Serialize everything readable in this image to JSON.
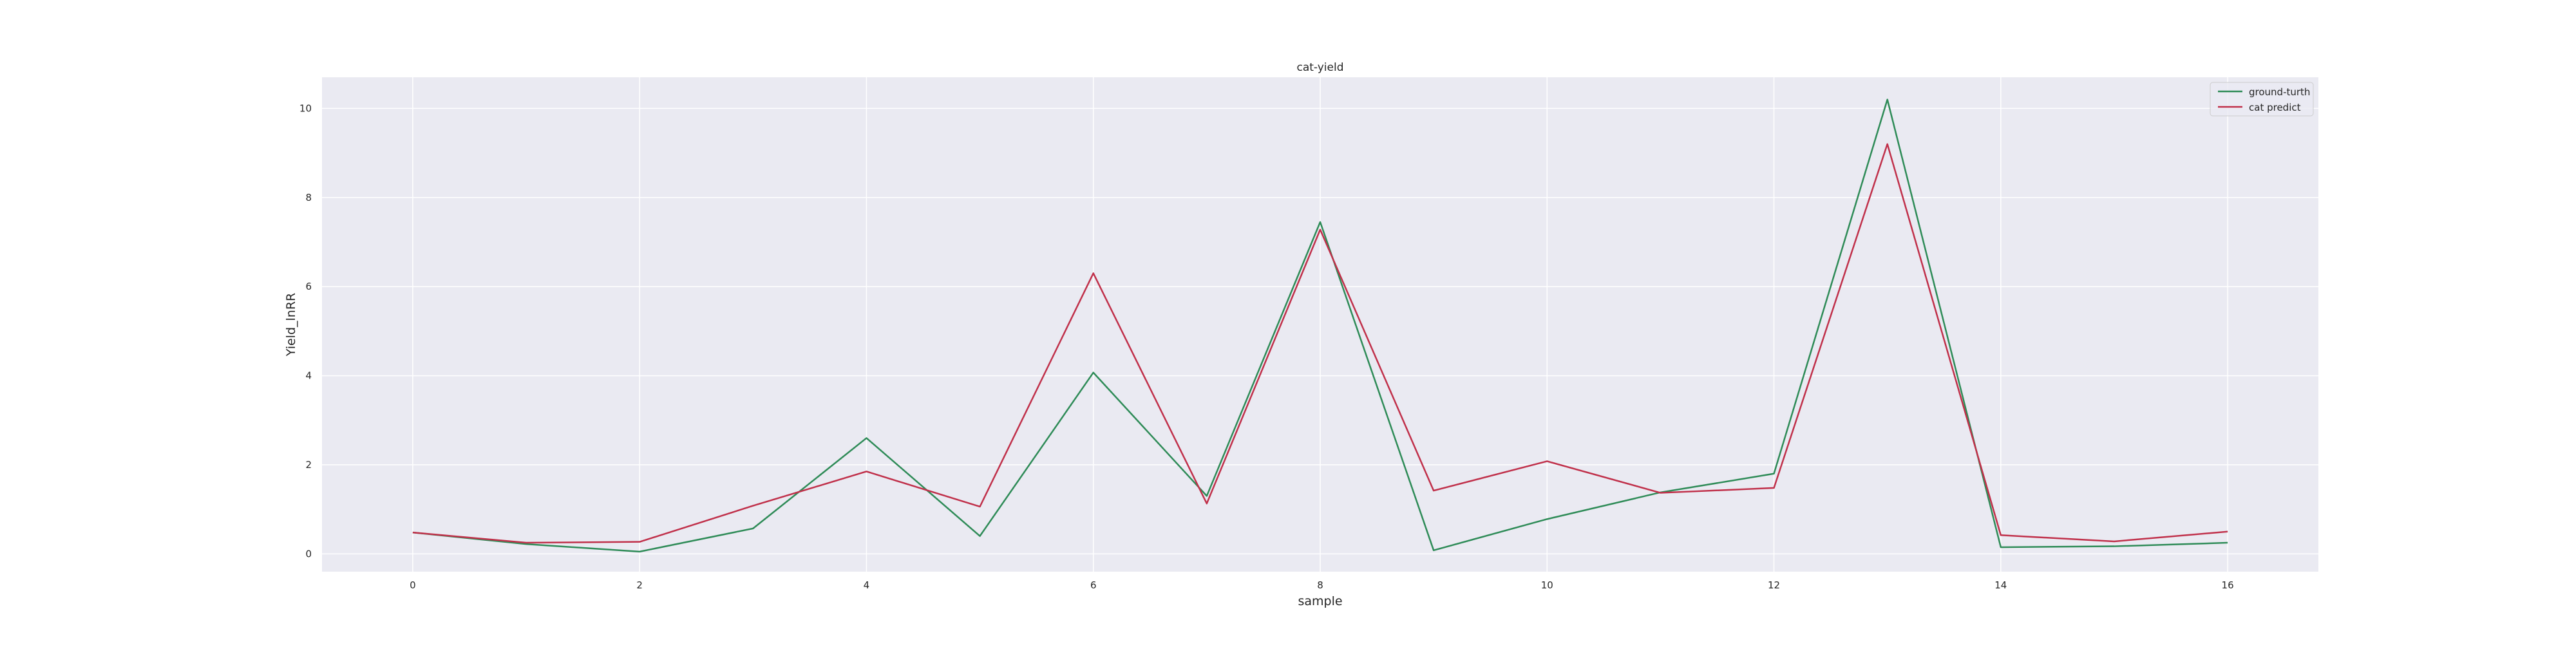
{
  "chart_data": {
    "type": "line",
    "title": "cat-yield",
    "xlabel": "sample",
    "ylabel": "Yield_lnRR",
    "x": [
      0,
      1,
      2,
      3,
      4,
      5,
      6,
      7,
      8,
      9,
      10,
      11,
      12,
      13,
      14,
      15,
      16
    ],
    "xlim": [
      -0.8,
      16.8
    ],
    "ylim": [
      -0.4,
      10.7
    ],
    "xticks": [
      0,
      2,
      4,
      6,
      8,
      10,
      12,
      14,
      16
    ],
    "yticks": [
      0,
      2,
      4,
      6,
      8,
      10
    ],
    "grid": true,
    "legend_position": "top-right",
    "series": [
      {
        "name": "ground-turth",
        "color": "#2e8b57",
        "values": [
          0.48,
          0.22,
          0.05,
          0.57,
          2.6,
          0.4,
          4.07,
          1.3,
          7.45,
          0.08,
          0.78,
          1.38,
          1.8,
          10.2,
          0.15,
          0.17,
          0.25
        ]
      },
      {
        "name": "cat predict",
        "color": "#c0304a",
        "values": [
          0.48,
          0.25,
          0.27,
          1.08,
          1.85,
          1.06,
          6.3,
          1.13,
          7.28,
          1.42,
          2.08,
          1.37,
          1.48,
          9.2,
          0.42,
          0.28,
          0.5
        ]
      }
    ]
  }
}
